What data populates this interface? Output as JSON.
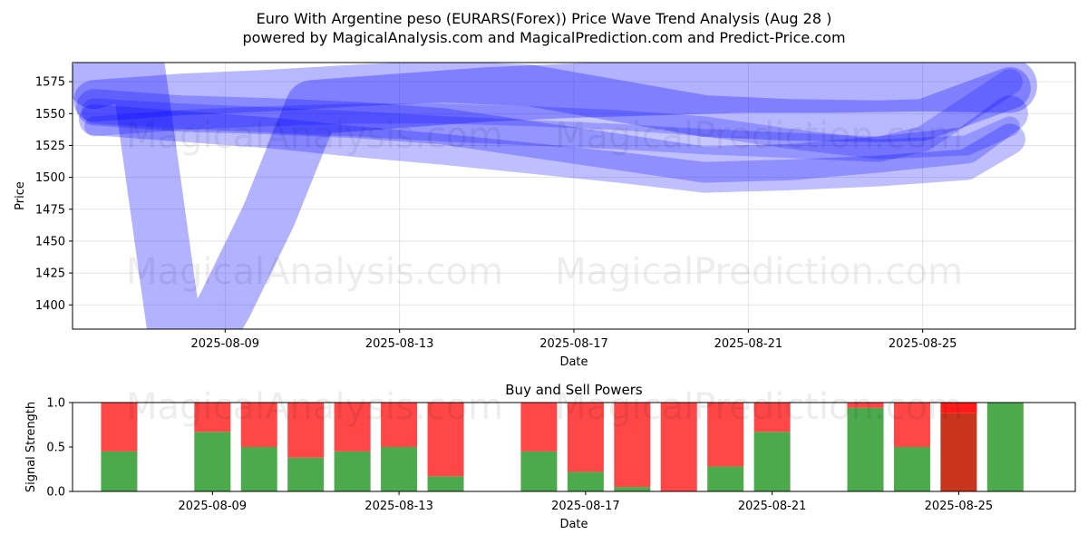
{
  "figure": {
    "title_line1": "Euro With Argentine peso (EURARS(Forex)) Price Wave Trend Analysis (Aug 28 )",
    "title_line2": "powered by MagicalAnalysis.com and MagicalPrediction.com and Predict-Price.com",
    "watermarks": [
      "MagicalAnalysis.com",
      "MagicalPrediction.com"
    ]
  },
  "chart_data": [
    {
      "type": "line",
      "title": "",
      "xlabel": "Date",
      "ylabel": "Price",
      "x_tick_labels": [
        "2025-08-09",
        "2025-08-13",
        "2025-08-17",
        "2025-08-21",
        "2025-08-25"
      ],
      "y_tick_labels": [
        "1400",
        "1425",
        "1450",
        "1475",
        "1500",
        "1525",
        "1550",
        "1575"
      ],
      "xlim": [
        "2025-08-05T12:00",
        "2025-08-28T12:00"
      ],
      "ylim": [
        1381,
        1590
      ],
      "grid": true,
      "line_color": "#0000ff",
      "series": [
        {
          "x": [
            "2025-08-06",
            "2025-08-07",
            "2025-08-08",
            "2025-08-09",
            "2025-08-10",
            "2025-08-11",
            "2025-08-13",
            "2025-08-15",
            "2025-08-17",
            "2025-08-19",
            "2025-08-21",
            "2025-08-23",
            "2025-08-25",
            "2025-08-27"
          ],
          "values": [
            1575,
            1585,
            1340,
            1400,
            1470,
            1555,
            1560,
            1565,
            1568,
            1570,
            1572,
            1572,
            1573,
            1572
          ]
        },
        {
          "x": [
            "2025-08-06",
            "2025-08-08",
            "2025-08-10",
            "2025-08-12",
            "2025-08-14",
            "2025-08-16",
            "2025-08-18",
            "2025-08-20",
            "2025-08-22",
            "2025-08-24",
            "2025-08-25",
            "2025-08-27"
          ],
          "values": [
            1560,
            1565,
            1568,
            1572,
            1575,
            1572,
            1560,
            1548,
            1545,
            1544,
            1545,
            1570
          ]
        },
        {
          "x": [
            "2025-08-06",
            "2025-08-08",
            "2025-08-10",
            "2025-08-12",
            "2025-08-14",
            "2025-08-16",
            "2025-08-18",
            "2025-08-20",
            "2025-08-22",
            "2025-08-24",
            "2025-08-26",
            "2025-08-27"
          ],
          "values": [
            1555,
            1550,
            1548,
            1545,
            1540,
            1530,
            1520,
            1510,
            1512,
            1518,
            1525,
            1550
          ]
        },
        {
          "x": [
            "2025-08-06",
            "2025-08-08",
            "2025-08-10",
            "2025-08-12",
            "2025-08-14",
            "2025-08-16",
            "2025-08-18",
            "2025-08-20",
            "2025-08-22",
            "2025-08-24",
            "2025-08-26",
            "2025-08-27"
          ],
          "values": [
            1545,
            1540,
            1535,
            1528,
            1522,
            1515,
            1508,
            1500,
            1502,
            1505,
            1510,
            1530
          ]
        },
        {
          "x": [
            "2025-08-06",
            "2025-08-08",
            "2025-08-10",
            "2025-08-12",
            "2025-08-14",
            "2025-08-16",
            "2025-08-18",
            "2025-08-20",
            "2025-08-22",
            "2025-08-24",
            "2025-08-25",
            "2025-08-27"
          ],
          "values": [
            1552,
            1548,
            1545,
            1542,
            1538,
            1535,
            1532,
            1528,
            1525,
            1522,
            1530,
            1575
          ]
        },
        {
          "x": [
            "2025-08-06",
            "2025-08-08",
            "2025-08-10",
            "2025-08-12",
            "2025-08-14",
            "2025-08-16",
            "2025-08-18",
            "2025-08-20",
            "2025-08-22",
            "2025-08-24",
            "2025-08-26",
            "2025-08-27"
          ],
          "values": [
            1540,
            1545,
            1548,
            1550,
            1550,
            1548,
            1545,
            1540,
            1530,
            1522,
            1525,
            1540
          ]
        }
      ]
    },
    {
      "type": "bar",
      "title": "Buy and Sell Powers",
      "xlabel": "Date",
      "ylabel": "Signal Strength",
      "x_tick_labels": [
        "2025-08-09",
        "2025-08-13",
        "2025-08-17",
        "2025-08-21",
        "2025-08-25"
      ],
      "y_tick_labels": [
        "0.0",
        "0.5",
        "1.0"
      ],
      "ylim": [
        0,
        1
      ],
      "categories": [
        "2025-08-07",
        "2025-08-09",
        "2025-08-10",
        "2025-08-11",
        "2025-08-12",
        "2025-08-13",
        "2025-08-14",
        "2025-08-16",
        "2025-08-17",
        "2025-08-18",
        "2025-08-19",
        "2025-08-20",
        "2025-08-21",
        "2025-08-23",
        "2025-08-24",
        "2025-08-25",
        "2025-08-26"
      ],
      "series": [
        {
          "name": "",
          "color": "#4caa4c",
          "values": [
            0.45,
            0.67,
            0.5,
            0.38,
            0.45,
            0.5,
            0.17,
            0.45,
            0.22,
            0.05,
            0.0,
            0.28,
            0.67,
            0.94,
            0.5,
            0.88,
            1.0
          ]
        },
        {
          "name": "",
          "color": "#ff4747",
          "values": [
            0.55,
            0.33,
            0.5,
            0.62,
            0.55,
            0.5,
            0.83,
            0.55,
            0.78,
            0.95,
            1.0,
            0.72,
            0.33,
            0.06,
            0.5,
            0.12,
            0.0
          ]
        }
      ],
      "highlight_category": "2025-08-25",
      "highlight_colors": {
        "buy": "#c8341c",
        "sell": "#ff1a1a"
      }
    }
  ]
}
